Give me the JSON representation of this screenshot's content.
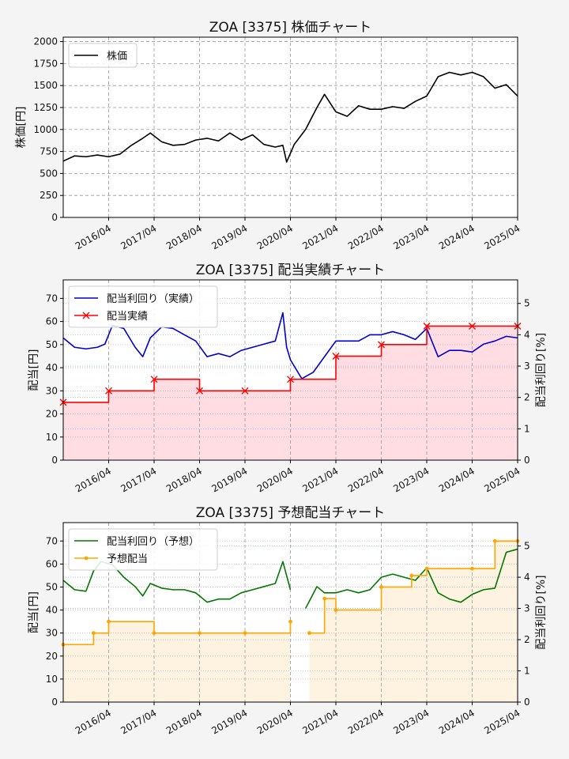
{
  "chart_data": [
    {
      "type": "line",
      "title": "ZOA [3375]  株価チャート",
      "ylabel": "株価[円]",
      "ylim": [
        0,
        2050
      ],
      "yticks": [
        0,
        250,
        500,
        750,
        1000,
        1250,
        1500,
        1750,
        2000
      ],
      "xlim": [
        "2015-04-01",
        "2025-04-01"
      ],
      "xticks": [
        "2016/04",
        "2017/04",
        "2018/04",
        "2019/04",
        "2020/04",
        "2021/04",
        "2022/04",
        "2023/04",
        "2024/04",
        "2025/04"
      ],
      "grid": true,
      "legend_position": "top-left",
      "series": [
        {
          "name": "株価",
          "color": "#000000",
          "x": [
            "2015-04",
            "2015-07",
            "2015-10",
            "2016-01",
            "2016-04",
            "2016-07",
            "2016-10",
            "2017-01",
            "2017-03",
            "2017-06",
            "2017-09",
            "2017-12",
            "2018-03",
            "2018-06",
            "2018-09",
            "2018-12",
            "2019-03",
            "2019-06",
            "2019-09",
            "2019-12",
            "2020-02",
            "2020-03",
            "2020-05",
            "2020-08",
            "2020-11",
            "2021-01",
            "2021-04",
            "2021-07",
            "2021-10",
            "2022-01",
            "2022-04",
            "2022-07",
            "2022-10",
            "2023-01",
            "2023-04",
            "2023-07",
            "2023-10",
            "2024-01",
            "2024-04",
            "2024-07",
            "2024-10",
            "2025-01",
            "2025-04"
          ],
          "values": [
            640,
            700,
            690,
            710,
            690,
            720,
            820,
            900,
            960,
            860,
            820,
            830,
            880,
            900,
            870,
            960,
            880,
            940,
            830,
            800,
            820,
            630,
            830,
            1000,
            1250,
            1400,
            1200,
            1150,
            1270,
            1230,
            1230,
            1260,
            1240,
            1320,
            1380,
            1600,
            1650,
            1620,
            1650,
            1600,
            1470,
            1510,
            1380
          ]
        }
      ]
    },
    {
      "type": "line",
      "title": "ZOA [3375]  配当実績チャート",
      "ylabel": "配当[円]",
      "y2label": "配当利回り[%]",
      "ylim": [
        0,
        78
      ],
      "yticks": [
        0,
        10,
        20,
        30,
        40,
        50,
        60,
        70
      ],
      "y2lim": [
        0,
        5.75
      ],
      "y2ticks": [
        0,
        1,
        2,
        3,
        4,
        5
      ],
      "xlim": [
        "2015-04-01",
        "2025-04-01"
      ],
      "xticks": [
        "2016/04",
        "2017/04",
        "2018/04",
        "2019/04",
        "2020/04",
        "2021/04",
        "2022/04",
        "2023/04",
        "2024/04",
        "2025/04"
      ],
      "grid": true,
      "legend_position": "top-left",
      "series": [
        {
          "name": "配当利回り（実績）",
          "color": "#0000cc",
          "axis": "right",
          "x": [
            "2015-04",
            "2015-07",
            "2015-10",
            "2016-01",
            "2016-03",
            "2016-05",
            "2016-08",
            "2016-11",
            "2017-01",
            "2017-03",
            "2017-06",
            "2017-09",
            "2017-12",
            "2018-03",
            "2018-06",
            "2018-09",
            "2018-12",
            "2019-03",
            "2019-06",
            "2019-09",
            "2019-12",
            "2020-02",
            "2020-03",
            "2020-04",
            "2020-07",
            "2020-10",
            "2021-01",
            "2021-04",
            "2021-07",
            "2021-10",
            "2022-01",
            "2022-04",
            "2022-07",
            "2022-10",
            "2023-01",
            "2023-04",
            "2023-07",
            "2023-10",
            "2024-01",
            "2024-04",
            "2024-07",
            "2024-10",
            "2025-01",
            "2025-04"
          ],
          "values": [
            3.9,
            3.6,
            3.55,
            3.6,
            3.7,
            4.3,
            4.2,
            3.6,
            3.3,
            3.9,
            4.25,
            4.2,
            4.0,
            3.8,
            3.3,
            3.4,
            3.3,
            3.5,
            3.6,
            3.7,
            3.8,
            4.7,
            3.6,
            3.2,
            2.6,
            2.8,
            3.3,
            3.8,
            3.8,
            3.8,
            4.0,
            4.0,
            4.1,
            4.0,
            3.85,
            4.2,
            3.3,
            3.5,
            3.5,
            3.45,
            3.7,
            3.8,
            3.95,
            3.9
          ]
        },
        {
          "name": "配当実績",
          "color": "#ff0000",
          "axis": "left",
          "step": true,
          "marker": "x",
          "x": [
            "2015-04",
            "2016-04",
            "2017-04",
            "2018-04",
            "2019-04",
            "2020-04",
            "2021-04",
            "2022-04",
            "2023-04",
            "2024-04",
            "2025-04"
          ],
          "values": [
            25,
            30,
            35,
            30,
            30,
            35,
            45,
            50,
            58,
            58,
            58
          ]
        }
      ]
    },
    {
      "type": "line",
      "title": "ZOA [3375]  予想配当チャート",
      "ylabel": "配当[円]",
      "y2label": "配当利回り[%]",
      "ylim": [
        0,
        78
      ],
      "yticks": [
        0,
        10,
        20,
        30,
        40,
        50,
        60,
        70
      ],
      "y2lim": [
        0,
        5.75
      ],
      "y2ticks": [
        0,
        1,
        2,
        3,
        4,
        5
      ],
      "xlim": [
        "2015-04-01",
        "2025-04-01"
      ],
      "xticks": [
        "2016/04",
        "2017/04",
        "2018/04",
        "2019/04",
        "2020/04",
        "2021/04",
        "2022/04",
        "2023/04",
        "2024/04",
        "2025/04"
      ],
      "grid": true,
      "legend_position": "top-left",
      "series": [
        {
          "name": "配当利回り（予想）",
          "color": "#007700",
          "axis": "right",
          "gap_after": "2020-04",
          "x": [
            "2015-04",
            "2015-07",
            "2015-10",
            "2015-12",
            "2016-02",
            "2016-05",
            "2016-08",
            "2016-11",
            "2017-01",
            "2017-03",
            "2017-06",
            "2017-09",
            "2017-12",
            "2018-03",
            "2018-06",
            "2018-09",
            "2018-12",
            "2019-03",
            "2019-06",
            "2019-09",
            "2019-12",
            "2020-02",
            "2020-04",
            "2020-08",
            "2020-11",
            "2021-01",
            "2021-04",
            "2021-07",
            "2021-10",
            "2022-01",
            "2022-04",
            "2022-07",
            "2022-10",
            "2023-01",
            "2023-04",
            "2023-07",
            "2023-10",
            "2024-01",
            "2024-04",
            "2024-07",
            "2024-10",
            "2025-01",
            "2025-04"
          ],
          "values": [
            3.9,
            3.6,
            3.55,
            4.2,
            4.5,
            4.4,
            4.0,
            3.7,
            3.4,
            3.8,
            3.65,
            3.6,
            3.6,
            3.5,
            3.2,
            3.3,
            3.3,
            3.5,
            3.6,
            3.7,
            3.8,
            4.5,
            3.6,
            3.0,
            3.7,
            3.5,
            3.5,
            3.6,
            3.5,
            3.6,
            4.0,
            4.1,
            4.0,
            3.9,
            4.3,
            3.5,
            3.3,
            3.2,
            3.45,
            3.6,
            3.65,
            4.8,
            4.9
          ]
        },
        {
          "name": "予想配当",
          "color": "#ffa500",
          "axis": "left",
          "step": true,
          "marker": "dot",
          "gap_after": "2020-04",
          "x": [
            "2015-04",
            "2015-12",
            "2016-04",
            "2017-04",
            "2018-04",
            "2019-04",
            "2020-04",
            "2020-09",
            "2021-01",
            "2021-04",
            "2022-04",
            "2022-12",
            "2023-04",
            "2024-04",
            "2024-10",
            "2025-04"
          ],
          "values": [
            25,
            30,
            35,
            30,
            30,
            30,
            35,
            30,
            45,
            40,
            50,
            55,
            58,
            58,
            70,
            70
          ]
        }
      ]
    }
  ]
}
